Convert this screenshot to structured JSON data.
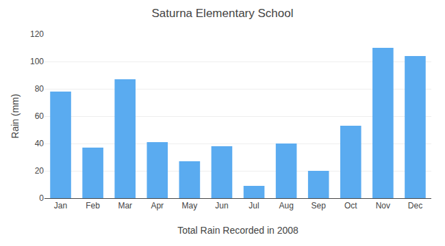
{
  "chart_data": {
    "type": "bar",
    "title": "Saturna Elementary School",
    "xlabel": "Total Rain Recorded in 2008",
    "ylabel": "Rain (mm)",
    "categories": [
      "Jan",
      "Feb",
      "Mar",
      "Apr",
      "May",
      "Jun",
      "Jul",
      "Aug",
      "Sep",
      "Oct",
      "Nov",
      "Dec"
    ],
    "values": [
      78,
      37,
      87,
      41,
      27,
      38,
      9,
      40,
      20,
      53,
      110,
      104
    ],
    "color": "#5aabf0",
    "ylim": [
      0,
      120
    ],
    "yticks": [
      0,
      20,
      40,
      60,
      80,
      100,
      120
    ],
    "grid": true
  }
}
